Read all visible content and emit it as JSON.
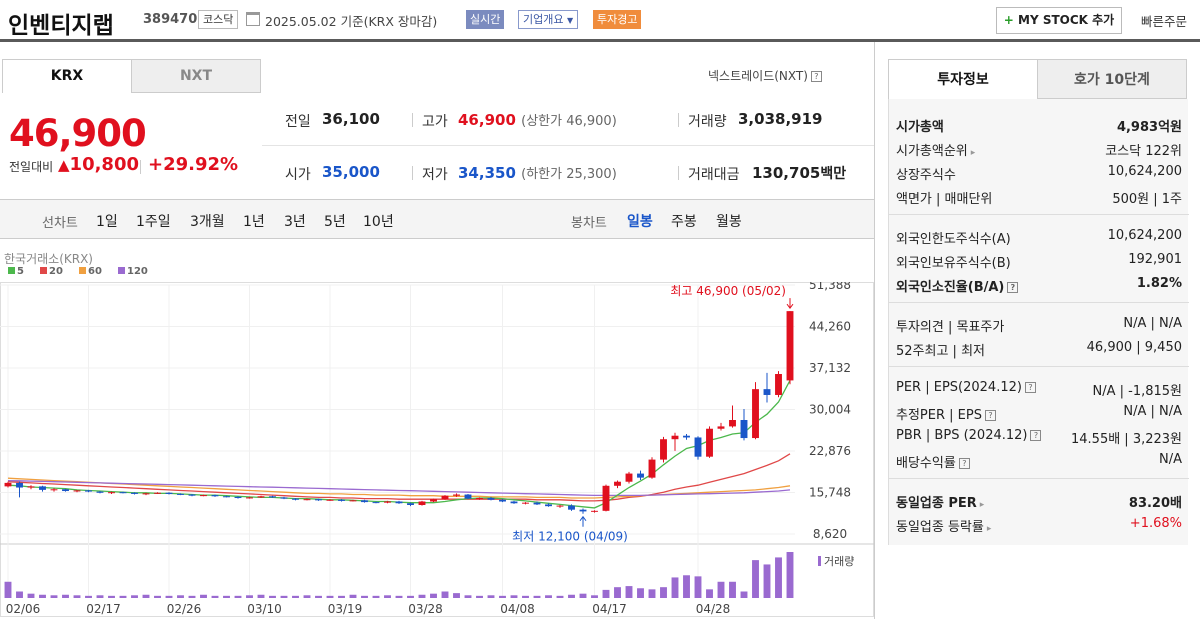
{
  "header": {
    "name": "인벤티지랩",
    "code": "389470",
    "market": "코스닥",
    "date": "2025.05.02",
    "basis": "기준(KRX 장마감)",
    "badges": [
      "실시간",
      "기업개요",
      "투자경고"
    ],
    "mystock_label": "MY STOCK 추가",
    "quick_order": "빠른주문"
  },
  "tabs": [
    "KRX",
    "NXT"
  ],
  "nxt_link": "넥스트레이드(NXT)",
  "price": {
    "current": "46,900",
    "change_label": "전일대비",
    "change": "10,800",
    "change_pct": "+29.92%"
  },
  "summary": {
    "prev_label": "전일",
    "prev": "36,100",
    "high_label": "고가",
    "high": "46,900",
    "upper": "(상한가 46,900)",
    "volume_label": "거래량",
    "volume": "3,038,919",
    "open_label": "시가",
    "open": "35,000",
    "low_label": "저가",
    "low": "34,350",
    "lower": "(하한가 25,300)",
    "amount_label": "거래대금",
    "amount": "130,705",
    "amount_unit": "백만"
  },
  "periods": {
    "line_label": "선차트",
    "line_items": [
      "1일",
      "1주일",
      "3개월",
      "1년",
      "3년",
      "5년",
      "10년"
    ],
    "candle_label": "봉차트",
    "candle_items": [
      "일봉",
      "주봉",
      "월봉"
    ],
    "selected": "일봉"
  },
  "chart_source": "한국거래소(KRX)",
  "legend": [
    {
      "name": "5",
      "color": "#4cb84c"
    },
    {
      "name": "20",
      "color": "#e04848"
    },
    {
      "name": "60",
      "color": "#f0a040"
    },
    {
      "name": "120",
      "color": "#9a6ad0"
    }
  ],
  "chart_data": {
    "type": "candlestick",
    "y_ticks": [
      "51,388",
      "44,260",
      "37,132",
      "30,004",
      "22,876",
      "15,748",
      "8,620"
    ],
    "ylim": [
      8620,
      51388
    ],
    "x_ticks": [
      "02/06",
      "02/17",
      "02/26",
      "03/10",
      "03/19",
      "03/28",
      "04/08",
      "04/17",
      "04/28"
    ],
    "max_annotation": "최고 46,900 (05/02)",
    "min_annotation": "최저 12,100 (04/09)",
    "volume_label": "거래량",
    "candles": [
      [
        16800,
        17600,
        16600,
        17400
      ],
      [
        17400,
        17600,
        14900,
        16600
      ],
      [
        16600,
        17000,
        16300,
        16800
      ],
      [
        16800,
        16900,
        15900,
        16200
      ],
      [
        16200,
        16500,
        15900,
        16300
      ],
      [
        16300,
        16400,
        15900,
        16000
      ],
      [
        16000,
        16200,
        15800,
        16100
      ],
      [
        16100,
        16200,
        15800,
        15900
      ],
      [
        15900,
        16000,
        15600,
        15700
      ],
      [
        15700,
        15900,
        15500,
        15800
      ],
      [
        15800,
        15900,
        15600,
        15700
      ],
      [
        15700,
        15800,
        15400,
        15500
      ],
      [
        15500,
        15700,
        15300,
        15600
      ],
      [
        15600,
        15800,
        15500,
        15700
      ],
      [
        15700,
        15800,
        15400,
        15500
      ],
      [
        15500,
        15600,
        15300,
        15400
      ],
      [
        15400,
        15500,
        15100,
        15200
      ],
      [
        15200,
        15400,
        15100,
        15300
      ],
      [
        15300,
        15400,
        15000,
        15100
      ],
      [
        15100,
        15200,
        14900,
        15000
      ],
      [
        15000,
        15100,
        14700,
        14800
      ],
      [
        14800,
        15000,
        14700,
        14900
      ],
      [
        14900,
        15200,
        14800,
        15100
      ],
      [
        15100,
        15200,
        14800,
        14900
      ],
      [
        14900,
        15000,
        14600,
        14700
      ],
      [
        14700,
        14800,
        14400,
        14500
      ],
      [
        14500,
        14700,
        14400,
        14600
      ],
      [
        14600,
        14700,
        14300,
        14400
      ],
      [
        14400,
        14600,
        14300,
        14500
      ],
      [
        14500,
        14600,
        14200,
        14300
      ],
      [
        14300,
        14500,
        14200,
        14400
      ],
      [
        14400,
        14500,
        14000,
        14100
      ],
      [
        14100,
        14200,
        13900,
        14000
      ],
      [
        14000,
        14300,
        13900,
        14200
      ],
      [
        14200,
        14300,
        13800,
        13900
      ],
      [
        13900,
        14000,
        13400,
        13600
      ],
      [
        13600,
        14300,
        13500,
        14200
      ],
      [
        14200,
        14700,
        14100,
        14600
      ],
      [
        14600,
        15300,
        14500,
        15200
      ],
      [
        15200,
        15600,
        15000,
        15400
      ],
      [
        15400,
        15500,
        14600,
        14700
      ],
      [
        14700,
        14900,
        14500,
        14800
      ],
      [
        14800,
        15000,
        14400,
        14500
      ],
      [
        14500,
        14600,
        14100,
        14200
      ],
      [
        14200,
        14300,
        13800,
        13900
      ],
      [
        13900,
        14100,
        13700,
        14000
      ],
      [
        14000,
        14200,
        13600,
        13700
      ],
      [
        13700,
        13900,
        13300,
        13400
      ],
      [
        13400,
        13600,
        13100,
        13500
      ],
      [
        13500,
        13700,
        12600,
        12800
      ],
      [
        12800,
        13000,
        12100,
        12500
      ],
      [
        12500,
        12700,
        12300,
        12600
      ],
      [
        12600,
        17100,
        12500,
        16900
      ],
      [
        16900,
        17800,
        16500,
        17600
      ],
      [
        17600,
        19300,
        17300,
        19000
      ],
      [
        19000,
        19500,
        17900,
        18300
      ],
      [
        18300,
        21800,
        18100,
        21400
      ],
      [
        21400,
        25300,
        20900,
        24900
      ],
      [
        24900,
        26000,
        22900,
        25500
      ],
      [
        25500,
        25800,
        24800,
        25200
      ],
      [
        25200,
        25400,
        21400,
        21900
      ],
      [
        21900,
        27100,
        21700,
        26700
      ],
      [
        26700,
        27700,
        26400,
        27100
      ],
      [
        27100,
        30700,
        26900,
        28200
      ],
      [
        28200,
        30100,
        24700,
        25100
      ],
      [
        25100,
        34700,
        24900,
        33500
      ],
      [
        33500,
        36300,
        31200,
        32500
      ],
      [
        32500,
        36600,
        32100,
        36100
      ],
      [
        35000,
        46900,
        34350,
        46900
      ]
    ],
    "ma5": [
      17000,
      16900,
      16700,
      16600,
      16500,
      16400,
      16200,
      16100,
      16000,
      15900,
      15800,
      15700,
      15700,
      15600,
      15600,
      15500,
      15400,
      15300,
      15300,
      15200,
      15100,
      15000,
      14900,
      14900,
      14800,
      14700,
      14700,
      14600,
      14500,
      14500,
      14400,
      14300,
      14200,
      14200,
      14100,
      14000,
      14000,
      14000,
      14200,
      14500,
      14700,
      14800,
      14800,
      14700,
      14500,
      14300,
      14100,
      13900,
      13700,
      13500,
      13300,
      13100,
      14000,
      15300,
      16600,
      17700,
      18900,
      20500,
      22000,
      23300,
      23800,
      24700,
      25200,
      25800,
      26000,
      27800,
      29200,
      31300,
      35000
    ],
    "ma20": [
      17600,
      17500,
      17400,
      17300,
      17200,
      17100,
      17000,
      16900,
      16800,
      16700,
      16600,
      16500,
      16400,
      16300,
      16200,
      16100,
      16000,
      15900,
      15800,
      15700,
      15600,
      15500,
      15400,
      15300,
      15200,
      15100,
      15000,
      14900,
      14900,
      14800,
      14800,
      14700,
      14700,
      14700,
      14600,
      14600,
      14600,
      14600,
      14600,
      14600,
      14600,
      14600,
      14600,
      14600,
      14600,
      14600,
      14500,
      14500,
      14500,
      14400,
      14300,
      14300,
      14400,
      14600,
      14900,
      15100,
      15400,
      15800,
      16300,
      16700,
      17000,
      17500,
      18000,
      18500,
      19000,
      19700,
      20400,
      21200,
      22400
    ],
    "ma60": [
      18200,
      18100,
      18000,
      17900,
      17800,
      17700,
      17600,
      17500,
      17400,
      17300,
      17200,
      17100,
      17000,
      16900,
      16800,
      16700,
      16600,
      16500,
      16400,
      16300,
      16200,
      16100,
      16000,
      15900,
      15800,
      15700,
      15600,
      15600,
      15500,
      15500,
      15400,
      15400,
      15300,
      15300,
      15300,
      15200,
      15200,
      15200,
      15100,
      15100,
      15100,
      15100,
      15000,
      15000,
      15000,
      15000,
      14900,
      14900,
      14900,
      14800,
      14800,
      14800,
      14900,
      15000,
      15100,
      15200,
      15300,
      15400,
      15500,
      15600,
      15700,
      15800,
      15900,
      16000,
      16100,
      16200,
      16400,
      16600,
      16900
    ],
    "ma120": [
      17800,
      17750,
      17700,
      17650,
      17600,
      17550,
      17500,
      17450,
      17400,
      17350,
      17300,
      17250,
      17200,
      17150,
      17100,
      17050,
      17000,
      16950,
      16900,
      16850,
      16800,
      16750,
      16700,
      16650,
      16600,
      16550,
      16500,
      16450,
      16400,
      16350,
      16300,
      16250,
      16200,
      16150,
      16100,
      16050,
      16000,
      15950,
      15900,
      15850,
      15800,
      15750,
      15700,
      15650,
      15600,
      15550,
      15500,
      15450,
      15400,
      15350,
      15300,
      15250,
      15250,
      15250,
      15250,
      15250,
      15300,
      15350,
      15400,
      15450,
      15500,
      15550,
      15600,
      15650,
      15700,
      15800,
      15900,
      16000,
      16200
    ],
    "volumes": [
      30,
      12,
      8,
      6,
      5,
      6,
      5,
      4,
      5,
      4,
      4,
      5,
      6,
      4,
      4,
      5,
      4,
      6,
      4,
      4,
      4,
      5,
      6,
      4,
      4,
      4,
      5,
      4,
      4,
      4,
      6,
      4,
      4,
      5,
      4,
      4,
      6,
      8,
      12,
      9,
      5,
      4,
      5,
      4,
      5,
      4,
      4,
      5,
      4,
      6,
      8,
      5,
      15,
      20,
      22,
      18,
      16,
      20,
      38,
      42,
      40,
      16,
      30,
      30,
      12,
      70,
      62,
      75,
      85
    ]
  },
  "right_panel": {
    "tabs": [
      "투자정보",
      "호가 10단계"
    ],
    "rows": [
      {
        "l": "시가총액",
        "r": "4,983억원",
        "bold": true
      },
      {
        "l": "시가총액순위",
        "r": "코스닥 122위",
        "arrow": true
      },
      {
        "l": "상장주식수",
        "r": "10,624,200"
      },
      {
        "l": "액면가 | 매매단위",
        "r": "500원 | 1주"
      },
      {
        "l": "외국인한도주식수(A)",
        "r": "10,624,200"
      },
      {
        "l": "외국인보유주식수(B)",
        "r": "192,901"
      },
      {
        "l": "외국인소진율(B/A)",
        "r": "1.82%",
        "bold": true,
        "q": true
      },
      {
        "l": "투자의견 | 목표주가",
        "r": "N/A | N/A"
      },
      {
        "l": "52주최고 | 최저",
        "r": "46,900 | 9,450"
      },
      {
        "l": "PER | EPS(2024.12)",
        "r": "N/A | -1,815원",
        "q": true
      },
      {
        "l": "추정PER | EPS",
        "r": "N/A | N/A",
        "q": true
      },
      {
        "l": "PBR | BPS (2024.12)",
        "r": "14.55배 | 3,223원",
        "q": true
      },
      {
        "l": "배당수익률",
        "r": "N/A",
        "q": true
      },
      {
        "l": "동일업종 PER",
        "r": "83.20배",
        "bold": true,
        "arrow": true
      },
      {
        "l": "동일업종 등락률",
        "r": "+1.68%",
        "arrow": true,
        "red": true
      }
    ]
  }
}
